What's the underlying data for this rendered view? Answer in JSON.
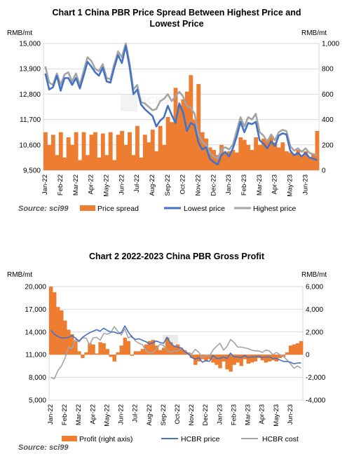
{
  "chart_data": [
    {
      "type": "line",
      "title_line1": "Chart 1 China PBR Price Spread Between Highest Price and",
      "title_line2": "Lowest Price",
      "ylabel_left": "RMB/mt",
      "ylabel_right": "RMB/mt",
      "ylim_left": [
        9500,
        15000
      ],
      "ylim_right": [
        0,
        1000
      ],
      "yticks_left": [
        "15,000",
        "13,900",
        "12,800",
        "11,700",
        "10,600",
        "9,500"
      ],
      "yticks_right": [
        "1,000",
        "800",
        "600",
        "400",
        "200",
        "0"
      ],
      "xticks": [
        "Jan-22",
        "Feb-22",
        "Mar-22",
        "Apr-22",
        "May-22",
        "Jun-22",
        "Jul-22",
        "Aug-22",
        "Sep-22",
        "Oct-22",
        "Nov-22",
        "Dec-22",
        "Jan-23",
        "Feb-23",
        "Mar-23",
        "Apr-23",
        "May-23",
        "Jun-23"
      ],
      "legend_position": "bottom",
      "source": "Source: sci99",
      "x": [
        0,
        0.25,
        0.5,
        0.75,
        1,
        1.25,
        1.5,
        1.75,
        2,
        2.25,
        2.5,
        2.75,
        3,
        3.25,
        3.5,
        3.75,
        4,
        4.25,
        4.5,
        4.75,
        5,
        5.25,
        5.5,
        5.75,
        6,
        6.25,
        6.5,
        6.75,
        7,
        7.25,
        7.5,
        7.75,
        8,
        8.25,
        8.5,
        8.75,
        9,
        9.25,
        9.5,
        9.75,
        10,
        10.25,
        10.5,
        10.75,
        11,
        11.25,
        11.5,
        11.75,
        12,
        12.25,
        12.5,
        12.75,
        13,
        13.25,
        13.5,
        13.75,
        14,
        14.25,
        14.5,
        14.75,
        15,
        15.25,
        15.5,
        15.75,
        16,
        16.25,
        16.5,
        16.75,
        17,
        17.25,
        17.5,
        17.75
      ],
      "series": [
        {
          "name": "Price spread",
          "axis": "right",
          "style": "area",
          "color": "#ED7D31",
          "values": [
            300,
            200,
            280,
            120,
            300,
            100,
            260,
            200,
            300,
            80,
            300,
            120,
            280,
            300,
            100,
            290,
            120,
            300,
            80,
            280,
            310,
            200,
            300,
            120,
            350,
            100,
            280,
            220,
            320,
            150,
            350,
            200,
            420,
            380,
            650,
            500,
            560,
            620,
            750,
            400,
            680,
            300,
            250,
            180,
            160,
            120,
            200,
            140,
            150,
            160,
            140,
            260,
            240,
            200,
            160,
            260,
            200,
            250,
            240,
            270,
            220,
            180,
            220,
            150,
            140,
            120,
            160,
            110,
            150,
            100,
            130,
            310
          ]
        },
        {
          "name": "Lowest price",
          "axis": "left",
          "style": "line",
          "color": "#4472C4",
          "values": [
            13700,
            13000,
            13100,
            13600,
            12950,
            13500,
            13500,
            13200,
            13500,
            13050,
            13600,
            14200,
            14000,
            13750,
            13600,
            13950,
            13350,
            13300,
            13950,
            14500,
            14150,
            14900,
            14000,
            12800,
            13000,
            12350,
            12150,
            12000,
            11850,
            11400,
            11650,
            11800,
            12300,
            11900,
            11550,
            12400,
            12000,
            11200,
            11550,
            11450,
            10700,
            10400,
            10500,
            10000,
            9850,
            9750,
            10150,
            10300,
            10100,
            10450,
            10950,
            11600,
            11150,
            11550,
            11500,
            11600,
            10800,
            10650,
            10450,
            10750,
            10550,
            11000,
            11100,
            11050,
            10350,
            10150,
            10250,
            10100,
            10250,
            10050,
            10000,
            9950
          ]
        },
        {
          "name": "Highest price",
          "axis": "left",
          "style": "line",
          "color": "#A5A5A5",
          "values": [
            14000,
            13300,
            13200,
            13700,
            13200,
            13650,
            13750,
            13350,
            13700,
            13200,
            13800,
            14400,
            14250,
            13900,
            13800,
            14100,
            13500,
            13450,
            14100,
            14650,
            14400,
            15000,
            14150,
            13000,
            13200,
            12450,
            12400,
            12250,
            12100,
            12150,
            12500,
            12600,
            12800,
            12500,
            12700,
            12900,
            12700,
            12300,
            12200,
            11950,
            11050,
            10750,
            10600,
            10250,
            10100,
            10000,
            10400,
            10500,
            10400,
            10600,
            11200,
            11800,
            11400,
            11800,
            11700,
            11950,
            11150,
            11000,
            10750,
            11050,
            10800,
            11150,
            11250,
            11200,
            10550,
            10350,
            10450,
            10300,
            10450,
            10250,
            10200,
            10150
          ]
        }
      ]
    },
    {
      "type": "line",
      "title": "Chart 2 2022-2023  China PBR Gross Profit",
      "ylabel_left": "RMB/mt",
      "ylabel_right": "RMB/mt",
      "ylim_left": [
        5000,
        20000
      ],
      "ylim_right": [
        -4000,
        6000
      ],
      "yticks_left": [
        "20,000",
        "17,000",
        "14,000",
        "11,000",
        "8,000",
        "5,000"
      ],
      "yticks_right": [
        "6,000",
        "4,000",
        "2,000",
        "0",
        "-2,000",
        "-4,000"
      ],
      "xticks": [
        "Jan-22",
        "Feb-22",
        "Mar-22",
        "Apr-22",
        "May-22",
        "Jun-22",
        "Jul-22",
        "Aug-22",
        "Sep-22",
        "Oct-22",
        "Nov-22",
        "Dec-22",
        "Jan-23",
        "Feb-23",
        "Mar-23",
        "Apr-23",
        "May-23",
        "Jun-23"
      ],
      "legend_position": "bottom",
      "source": "Source: sci99",
      "x": [
        0,
        0.25,
        0.5,
        0.75,
        1,
        1.25,
        1.5,
        1.75,
        2,
        2.25,
        2.5,
        2.75,
        3,
        3.25,
        3.5,
        3.75,
        4,
        4.25,
        4.5,
        4.75,
        5,
        5.25,
        5.5,
        5.75,
        6,
        6.25,
        6.5,
        6.75,
        7,
        7.25,
        7.5,
        7.75,
        8,
        8.25,
        8.5,
        8.75,
        9,
        9.25,
        9.5,
        9.75,
        10,
        10.25,
        10.5,
        10.75,
        11,
        11.25,
        11.5,
        11.75,
        12,
        12.25,
        12.5,
        12.75,
        13,
        13.25,
        13.5,
        13.75,
        14,
        14.25,
        14.5,
        14.75,
        15,
        15.25,
        15.5,
        15.75,
        16,
        16.25,
        16.5,
        16.75,
        17,
        17.25,
        17.5,
        17.75
      ],
      "series": [
        {
          "name": "Profit (right axis)",
          "axis": "right",
          "style": "area",
          "color": "#ED7D31",
          "values": [
            6000,
            5500,
            4200,
            3900,
            3000,
            2200,
            1800,
            1200,
            300,
            -300,
            200,
            1000,
            900,
            100,
            1100,
            1000,
            500,
            -200,
            -600,
            200,
            800,
            1500,
            1200,
            -100,
            300,
            300,
            500,
            900,
            1200,
            1300,
            800,
            400,
            600,
            1500,
            1100,
            800,
            900,
            600,
            400,
            200,
            -300,
            -900,
            -600,
            -400,
            -600,
            -400,
            -700,
            -900,
            -1200,
            -600,
            -1300,
            -1500,
            -900,
            -700,
            -1000,
            -400,
            -800,
            -700,
            -600,
            -300,
            -500,
            -700,
            -600,
            -500,
            -600,
            -300,
            -200,
            200,
            800,
            900,
            1000,
            1200
          ]
        },
        {
          "name": "HCBR price",
          "axis": "left",
          "style": "line",
          "color": "#4472C4",
          "values": [
            14200,
            13700,
            13400,
            13200,
            13200,
            13300,
            13500,
            13200,
            12800,
            13300,
            13600,
            13900,
            14100,
            14300,
            14100,
            14500,
            14200,
            14000,
            14000,
            13800,
            13900,
            14800,
            14000,
            13300,
            13000,
            13100,
            12900,
            12700,
            12400,
            12600,
            12800,
            12600,
            12500,
            13300,
            12500,
            12100,
            12000,
            11900,
            11400,
            11100,
            10600,
            10400,
            10600,
            10000,
            10200,
            10100,
            10900,
            10500,
            10500,
            10700,
            10500,
            11200,
            10700,
            10700,
            10600,
            10900,
            10600,
            10700,
            10700,
            10800,
            10600,
            10700,
            10700,
            10500,
            10500,
            10300,
            10100,
            10100,
            10000,
            9800,
            9900,
            9900
          ]
        },
        {
          "name": "HCBR cost",
          "axis": "left",
          "style": "line",
          "color": "#A5A5A5",
          "values": [
            8000,
            7800,
            8900,
            9500,
            10500,
            12000,
            11800,
            13000,
            12700,
            13200,
            13200,
            12300,
            13200,
            13300,
            12900,
            13800,
            13700,
            13900,
            14700,
            14100,
            13600,
            14400,
            13200,
            13500,
            12800,
            12500,
            12300,
            11500,
            11200,
            11300,
            11800,
            12400,
            12200,
            11500,
            11300,
            11500,
            11500,
            11800,
            11500,
            11200,
            11100,
            11700,
            11300,
            10600,
            10900,
            10800,
            11600,
            12100,
            12500,
            11600,
            12100,
            13000,
            12600,
            12000,
            12000,
            11900,
            11800,
            11600,
            11500,
            11500,
            11300,
            11600,
            11500,
            11000,
            11300,
            11000,
            10800,
            10300,
            9800,
            9200,
            9500,
            9200
          ]
        }
      ]
    }
  ]
}
